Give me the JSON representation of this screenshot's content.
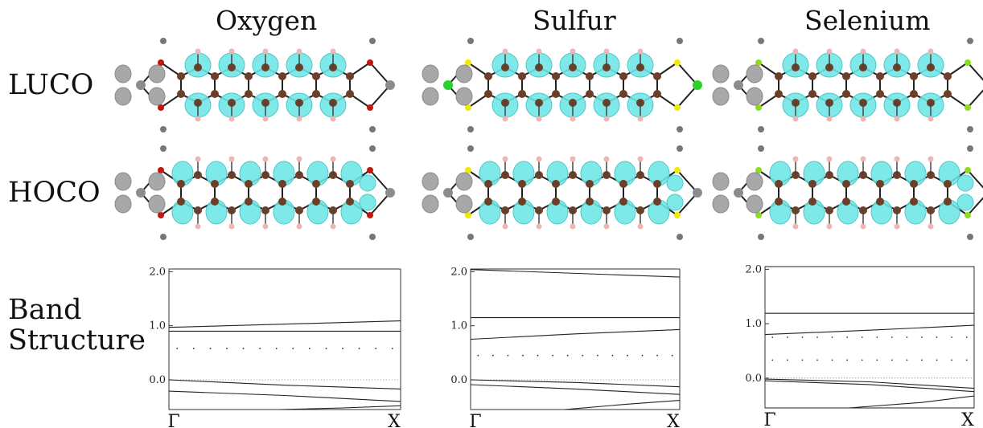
{
  "columns": [
    "Oxygen",
    "Sulfur",
    "Selenium"
  ],
  "row_labels": {
    "luco": "LUCO",
    "homo": "HOCO",
    "band": [
      "Band",
      "Structure"
    ]
  },
  "colors": {
    "isosurface": "#6de6e6",
    "carbon": "#6b3f28",
    "hydrogen": "#efb6b6",
    "metal": "#8c8c8c",
    "oxygen": "#c0180e",
    "sulfur": "#f0ea00",
    "selenium": "#8edc20",
    "metal_center_sulfur": "#28d228"
  },
  "chart_data": [
    {
      "type": "line",
      "panel": "Oxygen",
      "title": "",
      "xlabel": "",
      "ylabel": "",
      "x_ticks": [
        "Γ",
        "X"
      ],
      "y_ticks": [
        "0.0",
        "1.0",
        "2.0"
      ],
      "ylim": [
        -0.55,
        2.05
      ],
      "series": [
        {
          "x": [
            0,
            1
          ],
          "y": [
            0.97,
            1.09
          ]
        },
        {
          "x": [
            0,
            1
          ],
          "y": [
            0.9,
            0.9
          ]
        },
        {
          "x": [
            0,
            1
          ],
          "y": [
            0.58,
            0.58
          ],
          "style": "sparse-dots"
        },
        {
          "x": [
            0,
            1
          ],
          "y": [
            0.0,
            0.0
          ],
          "style": "fermi"
        },
        {
          "x": [
            0,
            0.5,
            1
          ],
          "y": [
            0.0,
            -0.1,
            -0.17
          ]
        },
        {
          "x": [
            0,
            0.5,
            1
          ],
          "y": [
            -0.21,
            -0.29,
            -0.4
          ]
        },
        {
          "x": [
            0.48,
            0.75,
            1
          ],
          "y": [
            -0.55,
            -0.52,
            -0.48
          ]
        }
      ]
    },
    {
      "type": "line",
      "panel": "Sulfur",
      "title": "",
      "xlabel": "",
      "ylabel": "",
      "x_ticks": [
        "Γ",
        "X"
      ],
      "y_ticks": [
        "0.0",
        "1.0",
        "2.0"
      ],
      "ylim": [
        -0.55,
        2.05
      ],
      "series": [
        {
          "x": [
            0,
            1
          ],
          "y": [
            2.04,
            1.9
          ]
        },
        {
          "x": [
            0,
            1
          ],
          "y": [
            1.15,
            1.15
          ]
        },
        {
          "x": [
            0,
            0.5,
            1
          ],
          "y": [
            0.75,
            0.85,
            0.93
          ]
        },
        {
          "x": [
            0,
            1
          ],
          "y": [
            0.45,
            0.45
          ],
          "style": "sparse-dots"
        },
        {
          "x": [
            0,
            1
          ],
          "y": [
            0.0,
            0.0
          ],
          "style": "fermi"
        },
        {
          "x": [
            0,
            0.5,
            1
          ],
          "y": [
            0.0,
            -0.05,
            -0.13
          ]
        },
        {
          "x": [
            0,
            0.5,
            1
          ],
          "y": [
            -0.09,
            -0.17,
            -0.27
          ]
        },
        {
          "x": [
            0.45,
            0.75,
            1
          ],
          "y": [
            -0.55,
            -0.45,
            -0.38
          ]
        }
      ]
    },
    {
      "type": "line",
      "panel": "Selenium",
      "title": "",
      "xlabel": "",
      "ylabel": "",
      "x_ticks": [
        "Γ",
        "X"
      ],
      "y_ticks": [
        "0.0",
        "1.0",
        "2.0"
      ],
      "ylim": [
        -0.55,
        2.05
      ],
      "series": [
        {
          "x": [
            0,
            1
          ],
          "y": [
            2.05,
            2.05
          ]
        },
        {
          "x": [
            0,
            1
          ],
          "y": [
            1.19,
            1.19
          ]
        },
        {
          "x": [
            0,
            0.5,
            1
          ],
          "y": [
            0.8,
            0.88,
            0.97
          ]
        },
        {
          "x": [
            0,
            1
          ],
          "y": [
            0.75,
            0.75
          ],
          "style": "sparse-dots"
        },
        {
          "x": [
            0,
            1
          ],
          "y": [
            0.33,
            0.33
          ],
          "style": "sparse-dots"
        },
        {
          "x": [
            0,
            1
          ],
          "y": [
            0.0,
            0.0
          ],
          "style": "fermi"
        },
        {
          "x": [
            0,
            0.5,
            1
          ],
          "y": [
            -0.02,
            -0.07,
            -0.19
          ]
        },
        {
          "x": [
            0,
            0.5,
            1
          ],
          "y": [
            -0.05,
            -0.12,
            -0.25
          ]
        },
        {
          "x": [
            0,
            0.5,
            1
          ],
          "y": [
            -0.55,
            -0.55,
            -0.55
          ]
        },
        {
          "x": [
            0.4,
            0.75,
            1
          ],
          "y": [
            -0.55,
            -0.45,
            -0.33
          ]
        }
      ]
    }
  ]
}
